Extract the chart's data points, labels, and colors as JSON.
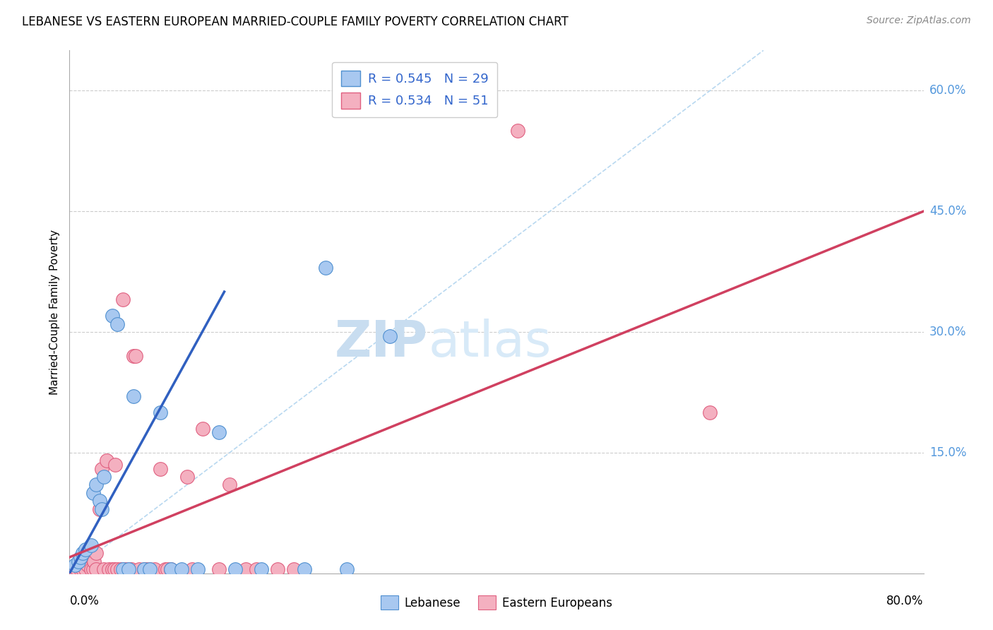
{
  "title": "LEBANESE VS EASTERN EUROPEAN MARRIED-COUPLE FAMILY POVERTY CORRELATION CHART",
  "source": "Source: ZipAtlas.com",
  "ylabel": "Married-Couple Family Poverty",
  "xlim": [
    0,
    80
  ],
  "ylim": [
    0,
    65
  ],
  "xtick_positions": [
    0,
    80
  ],
  "xtick_labels": [
    "0.0%",
    "80.0%"
  ],
  "ytick_positions": [
    15,
    30,
    45,
    60
  ],
  "ytick_labels": [
    "15.0%",
    "30.0%",
    "45.0%",
    "60.0%"
  ],
  "legend_labels": [
    "Lebanese",
    "Eastern Europeans"
  ],
  "legend_r": [
    "R = 0.545",
    "R = 0.534"
  ],
  "legend_n": [
    "N = 29",
    "N = 51"
  ],
  "scatter_blue": [
    [
      0.5,
      1.0
    ],
    [
      0.8,
      1.5
    ],
    [
      1.0,
      2.0
    ],
    [
      1.2,
      2.5
    ],
    [
      1.5,
      3.0
    ],
    [
      2.0,
      3.5
    ],
    [
      2.2,
      10.0
    ],
    [
      2.5,
      11.0
    ],
    [
      2.8,
      9.0
    ],
    [
      3.0,
      8.0
    ],
    [
      3.2,
      12.0
    ],
    [
      4.0,
      32.0
    ],
    [
      4.5,
      31.0
    ],
    [
      5.0,
      0.5
    ],
    [
      5.5,
      0.5
    ],
    [
      6.0,
      22.0
    ],
    [
      7.0,
      0.5
    ],
    [
      7.5,
      0.5
    ],
    [
      8.5,
      20.0
    ],
    [
      9.5,
      0.5
    ],
    [
      10.5,
      0.5
    ],
    [
      12.0,
      0.5
    ],
    [
      14.0,
      17.5
    ],
    [
      15.5,
      0.5
    ],
    [
      18.0,
      0.5
    ],
    [
      22.0,
      0.5
    ],
    [
      24.0,
      38.0
    ],
    [
      26.0,
      0.5
    ],
    [
      30.0,
      29.5
    ]
  ],
  "scatter_pink": [
    [
      0.3,
      0.5
    ],
    [
      0.5,
      0.5
    ],
    [
      0.7,
      0.5
    ],
    [
      0.8,
      1.0
    ],
    [
      1.0,
      0.5
    ],
    [
      1.2,
      0.5
    ],
    [
      1.3,
      1.0
    ],
    [
      1.5,
      0.5
    ],
    [
      1.7,
      1.0
    ],
    [
      2.0,
      0.5
    ],
    [
      2.0,
      2.0
    ],
    [
      2.2,
      0.5
    ],
    [
      2.3,
      1.5
    ],
    [
      2.5,
      0.5
    ],
    [
      2.5,
      2.5
    ],
    [
      2.8,
      8.0
    ],
    [
      3.0,
      13.0
    ],
    [
      3.2,
      0.5
    ],
    [
      3.5,
      14.0
    ],
    [
      3.7,
      0.5
    ],
    [
      4.0,
      0.5
    ],
    [
      4.2,
      0.5
    ],
    [
      4.3,
      13.5
    ],
    [
      4.5,
      0.5
    ],
    [
      4.8,
      0.5
    ],
    [
      5.0,
      34.0
    ],
    [
      5.2,
      0.5
    ],
    [
      5.5,
      0.5
    ],
    [
      5.8,
      0.5
    ],
    [
      6.0,
      27.0
    ],
    [
      6.2,
      27.0
    ],
    [
      6.5,
      0.5
    ],
    [
      7.0,
      0.5
    ],
    [
      7.2,
      0.5
    ],
    [
      7.5,
      0.5
    ],
    [
      8.0,
      0.5
    ],
    [
      8.5,
      13.0
    ],
    [
      9.0,
      0.5
    ],
    [
      9.2,
      0.5
    ],
    [
      9.5,
      0.5
    ],
    [
      11.0,
      12.0
    ],
    [
      11.5,
      0.5
    ],
    [
      12.5,
      18.0
    ],
    [
      14.0,
      0.5
    ],
    [
      15.0,
      11.0
    ],
    [
      16.5,
      0.5
    ],
    [
      17.5,
      0.5
    ],
    [
      19.5,
      0.5
    ],
    [
      21.0,
      0.5
    ],
    [
      60.0,
      20.0
    ],
    [
      42.0,
      55.0
    ]
  ],
  "blue_line_x": [
    0,
    14.5
  ],
  "blue_line_y": [
    0,
    35.0
  ],
  "pink_line_x": [
    0,
    80
  ],
  "pink_line_y": [
    2.0,
    45.0
  ],
  "diag_line_x": [
    0,
    65
  ],
  "diag_line_y": [
    0,
    65
  ],
  "color_blue_fill": "#a8c8f0",
  "color_pink_fill": "#f4b0c0",
  "color_blue_edge": "#5090d0",
  "color_pink_edge": "#e06080",
  "color_blue_line": "#3060c0",
  "color_pink_line": "#d04060",
  "color_diag": "#b8d8f0",
  "watermark_zip": "ZIP",
  "watermark_atlas": "atlas",
  "background": "#ffffff"
}
